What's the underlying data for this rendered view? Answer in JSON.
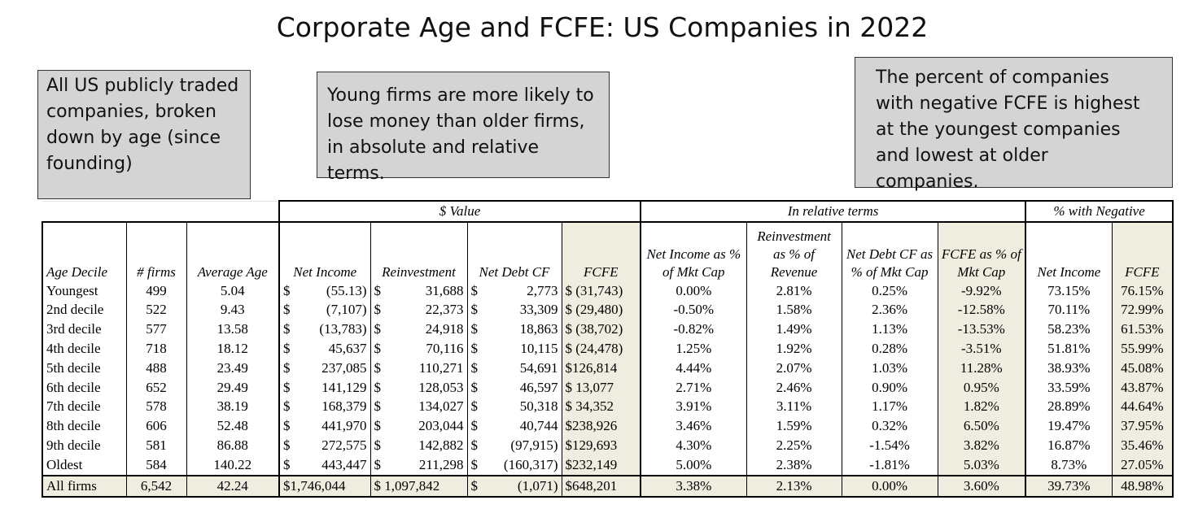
{
  "title": "Corporate Age and FCFE: US Companies in 2022",
  "notes": [
    "All US publicly traded companies, broken down by age (since founding)",
    "Young firms are more likely to lose money than older firms, in absolute and relative terms.",
    "The percent of companies with negative FCFE is highest at the youngest companies and lowest at older companies."
  ],
  "table": {
    "group_headers": {
      "value": "$ Value",
      "relative": "In relative terms",
      "negative": "% with Negative"
    },
    "columns": [
      "Age Decile",
      "# firms",
      "Average Age",
      "Net Income",
      "Reinvestment",
      "Net Debt CF",
      "FCFE",
      "Net Income as % of Mkt Cap",
      "Reinvestment as % of Revenue",
      "Net Debt CF as % of Mkt Cap",
      "FCFE as % of Mkt Cap",
      "Net Income",
      "FCFE"
    ],
    "rows": [
      {
        "decile": "Youngest",
        "firms": "499",
        "age": "5.04",
        "ni": "(55.13)",
        "reinv": "31,688",
        "ndcf": "2,773",
        "fcfe": "$ (31,743)",
        "ni_pct": "0.00%",
        "reinv_pct": "2.81%",
        "ndcf_pct": "0.25%",
        "fcfe_pct": "-9.92%",
        "neg_ni": "73.15%",
        "neg_fcfe": "76.15%"
      },
      {
        "decile": "2nd decile",
        "firms": "522",
        "age": "9.43",
        "ni": "(7,107)",
        "reinv": "22,373",
        "ndcf": "33,309",
        "fcfe": "$ (29,480)",
        "ni_pct": "-0.50%",
        "reinv_pct": "1.58%",
        "ndcf_pct": "2.36%",
        "fcfe_pct": "-12.58%",
        "neg_ni": "70.11%",
        "neg_fcfe": "72.99%"
      },
      {
        "decile": "3rd decile",
        "firms": "577",
        "age": "13.58",
        "ni": "(13,783)",
        "reinv": "24,918",
        "ndcf": "18,863",
        "fcfe": "$ (38,702)",
        "ni_pct": "-0.82%",
        "reinv_pct": "1.49%",
        "ndcf_pct": "1.13%",
        "fcfe_pct": "-13.53%",
        "neg_ni": "58.23%",
        "neg_fcfe": "61.53%"
      },
      {
        "decile": "4th decile",
        "firms": "718",
        "age": "18.12",
        "ni": "45,637",
        "reinv": "70,116",
        "ndcf": "10,115",
        "fcfe": "$ (24,478)",
        "ni_pct": "1.25%",
        "reinv_pct": "1.92%",
        "ndcf_pct": "0.28%",
        "fcfe_pct": "-3.51%",
        "neg_ni": "51.81%",
        "neg_fcfe": "55.99%"
      },
      {
        "decile": "5th decile",
        "firms": "488",
        "age": "23.49",
        "ni": "237,085",
        "reinv": "110,271",
        "ndcf": "54,691",
        "fcfe": "$126,814",
        "ni_pct": "4.44%",
        "reinv_pct": "2.07%",
        "ndcf_pct": "1.03%",
        "fcfe_pct": "11.28%",
        "neg_ni": "38.93%",
        "neg_fcfe": "45.08%"
      },
      {
        "decile": "6th decile",
        "firms": "652",
        "age": "29.49",
        "ni": "141,129",
        "reinv": "128,053",
        "ndcf": "46,597",
        "fcfe": "$  13,077",
        "ni_pct": "2.71%",
        "reinv_pct": "2.46%",
        "ndcf_pct": "0.90%",
        "fcfe_pct": "0.95%",
        "neg_ni": "33.59%",
        "neg_fcfe": "43.87%"
      },
      {
        "decile": "7th decile",
        "firms": "578",
        "age": "38.19",
        "ni": "168,379",
        "reinv": "134,027",
        "ndcf": "50,318",
        "fcfe": "$  34,352",
        "ni_pct": "3.91%",
        "reinv_pct": "3.11%",
        "ndcf_pct": "1.17%",
        "fcfe_pct": "1.82%",
        "neg_ni": "28.89%",
        "neg_fcfe": "44.64%"
      },
      {
        "decile": "8th decile",
        "firms": "606",
        "age": "52.48",
        "ni": "441,970",
        "reinv": "203,044",
        "ndcf": "40,744",
        "fcfe": "$238,926",
        "ni_pct": "3.46%",
        "reinv_pct": "1.59%",
        "ndcf_pct": "0.32%",
        "fcfe_pct": "6.50%",
        "neg_ni": "19.47%",
        "neg_fcfe": "37.95%"
      },
      {
        "decile": "9th decile",
        "firms": "581",
        "age": "86.88",
        "ni": "272,575",
        "reinv": "142,882",
        "ndcf": "(97,915)",
        "fcfe": "$129,693",
        "ni_pct": "4.30%",
        "reinv_pct": "2.25%",
        "ndcf_pct": "-1.54%",
        "fcfe_pct": "3.82%",
        "neg_ni": "16.87%",
        "neg_fcfe": "35.46%"
      },
      {
        "decile": "Oldest",
        "firms": "584",
        "age": "140.22",
        "ni": "443,447",
        "reinv": "211,298",
        "ndcf": "(160,317)",
        "fcfe": "$232,149",
        "ni_pct": "5.00%",
        "reinv_pct": "2.38%",
        "ndcf_pct": "-1.81%",
        "fcfe_pct": "5.03%",
        "neg_ni": "8.73%",
        "neg_fcfe": "27.05%"
      }
    ],
    "total": {
      "decile": "All firms",
      "firms": "6,542",
      "age": "42.24",
      "ni": "$1,746,044",
      "reinv": "$ 1,097,842",
      "ndcf": "(1,071)",
      "fcfe": "$648,201",
      "ni_pct": "3.38%",
      "reinv_pct": "2.13%",
      "ndcf_pct": "0.00%",
      "fcfe_pct": "3.60%",
      "neg_ni": "39.73%",
      "neg_fcfe": "48.98%"
    },
    "currency_symbol": "$"
  }
}
